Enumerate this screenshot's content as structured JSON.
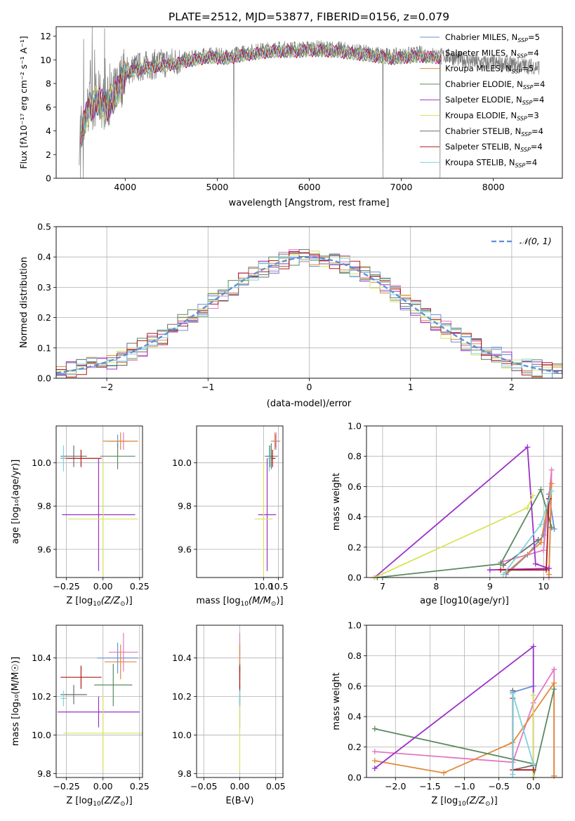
{
  "title": "PLATE=2512, MJD=53877, FIBERID=0156, z=0.079",
  "colors": {
    "Chabrier MILES": "#6b8fd6",
    "Salpeter MILES": "#e377c2",
    "Kroupa MILES": "#e08a3a",
    "Chabrier ELODIE": "#5b8a5f",
    "Salpeter ELODIE": "#9b30c9",
    "Kroupa ELODIE": "#d9e45a",
    "Chabrier STELIB": "#6e6e6e",
    "Salpeter STELIB": "#b01818",
    "Kroupa STELIB": "#7fd3dd"
  },
  "chart_data": [
    {
      "id": "spectrum",
      "type": "line",
      "title": "PLATE=2512, MJD=53877, FIBERID=0156, z=0.079",
      "xlabel": "wavelength [Angstrom, rest frame]",
      "ylabel": "Flux [f$_\\lambda$10$^{-17}$ erg cm$^{-2}$ s$^{-1}$ A$^{-1}$]",
      "xlim": [
        3250,
        8750
      ],
      "ylim": [
        0,
        12.8
      ],
      "xticks": [
        "4000",
        "5000",
        "6000",
        "7000",
        "8000"
      ],
      "yticks": [
        "0",
        "2",
        "4",
        "6",
        "8",
        "10",
        "12"
      ],
      "grid": false,
      "legend_position": "right",
      "legend": [
        {
          "series": "Chabrier MILES",
          "main": "Chabrier MILES, N",
          "sub": "SSP",
          "tail": "=5"
        },
        {
          "series": "Salpeter MILES",
          "main": "Salpeter MILES, N",
          "sub": "SSP",
          "tail": "=4"
        },
        {
          "series": "Kroupa MILES",
          "main": "Kroupa MILES, N",
          "sub": "SSP",
          "tail": "=5"
        },
        {
          "series": "Chabrier ELODIE",
          "main": "Chabrier ELODIE, N",
          "sub": "SSP",
          "tail": "=4"
        },
        {
          "series": "Salpeter ELODIE",
          "main": "Salpeter ELODIE, N",
          "sub": "SSP",
          "tail": "=4"
        },
        {
          "series": "Kroupa ELODIE",
          "main": "Kroupa ELODIE, N",
          "sub": "SSP",
          "tail": "=3"
        },
        {
          "series": "Chabrier STELIB",
          "main": "Chabrier STELIB, N",
          "sub": "SSP",
          "tail": "=4"
        },
        {
          "series": "Salpeter STELIB",
          "main": "Salpeter STELIB, N",
          "sub": "SSP",
          "tail": "=4"
        },
        {
          "series": "Kroupa STELIB",
          "main": "Kroupa STELIB, N",
          "sub": "SSP",
          "tail": "=4"
        }
      ],
      "continuum": [
        [
          3500,
          3.5
        ],
        [
          3600,
          6.0
        ],
        [
          3700,
          6.8
        ],
        [
          3800,
          6.2
        ],
        [
          3900,
          7.3
        ],
        [
          4000,
          9.0
        ],
        [
          4100,
          9.3
        ],
        [
          4200,
          9.5
        ],
        [
          4300,
          9.6
        ],
        [
          4500,
          9.8
        ],
        [
          4700,
          10.1
        ],
        [
          4900,
          10.4
        ],
        [
          5100,
          10.3
        ],
        [
          5300,
          10.6
        ],
        [
          5600,
          10.9
        ],
        [
          5900,
          10.9
        ],
        [
          6000,
          11.0
        ],
        [
          6300,
          10.9
        ],
        [
          6600,
          10.6
        ],
        [
          6900,
          10.3
        ],
        [
          7200,
          10.5
        ],
        [
          7500,
          10.3
        ],
        [
          7800,
          9.8
        ],
        [
          8200,
          9.6
        ],
        [
          8500,
          9.4
        ]
      ],
      "data_range": [
        3500,
        8500
      ],
      "model_range": [
        3520,
        7440
      ],
      "spikes": [
        5180,
        6800,
        7420
      ]
    },
    {
      "id": "residuals",
      "type": "histogram",
      "xlabel": "(data-model)/error",
      "ylabel": "Normed distribution",
      "xlim": [
        -2.5,
        2.5
      ],
      "ylim": [
        0,
        0.5
      ],
      "xticks": [
        "−2",
        "−1",
        "0",
        "1",
        "2"
      ],
      "yticks": [
        "0.0",
        "0.1",
        "0.2",
        "0.3",
        "0.4",
        "0.5"
      ],
      "grid": true,
      "bin_width": 0.1,
      "legend_label": "N(0,1)",
      "reference_curve": {
        "name": "N(0,1)",
        "mean": 0,
        "sigma": 1
      }
    },
    {
      "id": "age-Z",
      "type": "errorbar",
      "xlabel_main": "Z [log",
      "xlabel_sub": "10",
      "xlabel_tail": "(Z/Z",
      "xlabel_end": ")]",
      "ylabel": "age [log10(age/yr)]",
      "xlim": [
        -0.32,
        0.27
      ],
      "ylim": [
        9.47,
        10.17
      ],
      "xticks": [
        "−0.25",
        "0.00",
        "0.25"
      ],
      "yticks": [
        "9.6",
        "9.8",
        "10.0"
      ],
      "points": [
        {
          "series": "Chabrier MILES",
          "x": 0.1,
          "y": 10.1,
          "xerr": 0.07,
          "yerr": 0.03
        },
        {
          "series": "Salpeter MILES",
          "x": 0.14,
          "y": 10.1,
          "xerr": 0.09,
          "yerr": 0.04
        },
        {
          "series": "Kroupa MILES",
          "x": 0.12,
          "y": 10.1,
          "xerr": 0.12,
          "yerr": 0.04
        },
        {
          "series": "Chabrier ELODIE",
          "x": 0.1,
          "y": 10.03,
          "xerr": 0.12,
          "yerr": 0.06
        },
        {
          "series": "Salpeter ELODIE",
          "x": -0.03,
          "y": 9.76,
          "xerr": 0.25,
          "yerr": 0.26
        },
        {
          "series": "Kroupa ELODIE",
          "x": 0.0,
          "y": 9.74,
          "xerr": 0.24,
          "yerr": 0.27
        },
        {
          "series": "Chabrier STELIB",
          "x": -0.2,
          "y": 10.03,
          "xerr": 0.09,
          "yerr": 0.05
        },
        {
          "series": "Salpeter STELIB",
          "x": -0.15,
          "y": 10.02,
          "xerr": 0.14,
          "yerr": 0.04
        },
        {
          "series": "Kroupa STELIB",
          "x": -0.27,
          "y": 10.02,
          "xerr": 0.02,
          "yerr": 0.06
        }
      ]
    },
    {
      "id": "age-mass",
      "type": "errorbar",
      "xlabel_main": "mass [log",
      "xlabel_sub": "10",
      "xlabel_tail": "(M/M",
      "xlabel_end": ")]",
      "xlim": [
        7.75,
        10.65
      ],
      "ylim": [
        9.47,
        10.17
      ],
      "xticks": [
        "10.0",
        "10.5"
      ],
      "yticks": [
        "9.6",
        "9.8",
        "10.0"
      ],
      "points": [
        {
          "series": "Chabrier MILES",
          "x": 10.4,
          "y": 10.1,
          "xerr": 0.12,
          "yerr": 0.03
        },
        {
          "series": "Salpeter MILES",
          "x": 10.42,
          "y": 10.1,
          "xerr": 0.14,
          "yerr": 0.04
        },
        {
          "series": "Kroupa MILES",
          "x": 10.38,
          "y": 10.1,
          "xerr": 0.14,
          "yerr": 0.04
        },
        {
          "series": "Chabrier ELODIE",
          "x": 10.26,
          "y": 10.03,
          "xerr": 0.22,
          "yerr": 0.06
        },
        {
          "series": "Salpeter ELODIE",
          "x": 10.12,
          "y": 9.76,
          "xerr": 0.3,
          "yerr": 0.26
        },
        {
          "series": "Kroupa ELODIE",
          "x": 10.0,
          "y": 9.74,
          "xerr": 0.3,
          "yerr": 0.27
        },
        {
          "series": "Chabrier STELIB",
          "x": 10.21,
          "y": 10.03,
          "xerr": 0.08,
          "yerr": 0.05
        },
        {
          "series": "Salpeter STELIB",
          "x": 10.3,
          "y": 10.02,
          "xerr": 0.1,
          "yerr": 0.04
        },
        {
          "series": "Kroupa STELIB",
          "x": 10.19,
          "y": 10.02,
          "xerr": 0.07,
          "yerr": 0.06
        }
      ]
    },
    {
      "id": "weight-age",
      "type": "line",
      "xlabel": "age [log10(age/yr)]",
      "ylabel": "mass weight",
      "xlim": [
        6.7,
        10.35
      ],
      "ylim": [
        0,
        1.0
      ],
      "xticks": [
        "7",
        "8",
        "9",
        "10"
      ],
      "yticks": [
        "0.0",
        "0.2",
        "0.4",
        "0.6",
        "0.8",
        "1.0"
      ],
      "grid": true,
      "series": [
        {
          "name": "Chabrier MILES",
          "points": [
            [
              9.3,
              0.02
            ],
            [
              9.7,
              0.15
            ],
            [
              10.0,
              0.28
            ],
            [
              10.1,
              0.55
            ],
            [
              10.2,
              0.32
            ]
          ]
        },
        {
          "name": "Salpeter MILES",
          "points": [
            [
              9.2,
              0.1
            ],
            [
              10.0,
              0.18
            ],
            [
              10.15,
              0.71
            ],
            [
              10.1,
              0.0
            ]
          ]
        },
        {
          "name": "Kroupa MILES",
          "points": [
            [
              9.3,
              0.03
            ],
            [
              9.95,
              0.23
            ],
            [
              10.15,
              0.62
            ],
            [
              10.1,
              0.02
            ]
          ]
        },
        {
          "name": "Chabrier ELODIE",
          "points": [
            [
              6.9,
              0.0
            ],
            [
              9.2,
              0.09
            ],
            [
              9.95,
              0.58
            ],
            [
              10.15,
              0.33
            ]
          ]
        },
        {
          "name": "Salpeter ELODIE",
          "points": [
            [
              6.85,
              0.0
            ],
            [
              9.7,
              0.86
            ],
            [
              9.85,
              0.09
            ],
            [
              10.1,
              0.06
            ],
            [
              9.0,
              0.05
            ]
          ]
        },
        {
          "name": "Kroupa ELODIE",
          "points": [
            [
              6.85,
              0.0
            ],
            [
              9.7,
              0.46
            ],
            [
              9.8,
              0.54
            ]
          ]
        },
        {
          "name": "Chabrier STELIB",
          "points": [
            [
              9.25,
              0.08
            ],
            [
              9.9,
              0.25
            ]
          ]
        },
        {
          "name": "Salpeter STELIB",
          "points": [
            [
              9.2,
              0.05
            ],
            [
              10.05,
              0.05
            ],
            [
              10.1,
              0.52
            ]
          ]
        },
        {
          "name": "Kroupa STELIB",
          "points": [
            [
              9.25,
              0.02
            ],
            [
              9.95,
              0.35
            ],
            [
              10.15,
              0.57
            ]
          ]
        }
      ]
    },
    {
      "id": "mass-Z",
      "type": "errorbar",
      "xlabel_main": "Z [log",
      "xlabel_sub": "10",
      "xlabel_tail": "(Z/Z",
      "xlabel_end": ")]",
      "ylabel": "mass [log10(M/M☉)]",
      "xlim": [
        -0.32,
        0.27
      ],
      "ylim": [
        9.78,
        10.57
      ],
      "xticks": [
        "−0.25",
        "0.00",
        "0.25"
      ],
      "yticks": [
        "9.8",
        "10.0",
        "10.2",
        "10.4"
      ],
      "points": [
        {
          "series": "Chabrier MILES",
          "x": 0.1,
          "y": 10.4,
          "xerr": 0.14,
          "yerr": 0.08
        },
        {
          "series": "Salpeter MILES",
          "x": 0.14,
          "y": 10.43,
          "xerr": 0.1,
          "yerr": 0.1
        },
        {
          "series": "Kroupa MILES",
          "x": 0.12,
          "y": 10.38,
          "xerr": 0.11,
          "yerr": 0.09
        },
        {
          "series": "Chabrier ELODIE",
          "x": 0.07,
          "y": 10.26,
          "xerr": 0.13,
          "yerr": 0.11
        },
        {
          "series": "Salpeter ELODIE",
          "x": -0.03,
          "y": 10.12,
          "xerr": 0.28,
          "yerr": 0.08
        },
        {
          "series": "Kroupa ELODIE",
          "x": 0.0,
          "y": 10.01,
          "xerr": 0.27,
          "yerr": 0.2
        },
        {
          "series": "Chabrier STELIB",
          "x": -0.2,
          "y": 10.21,
          "xerr": 0.09,
          "yerr": 0.05
        },
        {
          "series": "Salpeter STELIB",
          "x": -0.15,
          "y": 10.3,
          "xerr": 0.14,
          "yerr": 0.06
        },
        {
          "series": "Kroupa STELIB",
          "x": -0.27,
          "y": 10.19,
          "xerr": 0.02,
          "yerr": 0.04
        }
      ]
    },
    {
      "id": "mass-EBV",
      "type": "errorbar",
      "xlabel": "E(B-V)",
      "xlim": [
        -0.06,
        0.06
      ],
      "ylim": [
        9.78,
        10.57
      ],
      "xticks": [
        "−0.05",
        "0.00",
        "0.05"
      ],
      "yticks": [
        "9.8",
        "10.0",
        "10.2",
        "10.4"
      ],
      "points": [
        {
          "series": "Chabrier MILES",
          "x": 0,
          "y": 10.4,
          "xerr": 0,
          "yerr": 0.08
        },
        {
          "series": "Salpeter MILES",
          "x": 0,
          "y": 10.43,
          "xerr": 0,
          "yerr": 0.1
        },
        {
          "series": "Kroupa MILES",
          "x": 0,
          "y": 10.38,
          "xerr": 0,
          "yerr": 0.09
        },
        {
          "series": "Chabrier ELODIE",
          "x": 0,
          "y": 10.26,
          "xerr": 0,
          "yerr": 0.11
        },
        {
          "series": "Salpeter ELODIE",
          "x": 0,
          "y": 10.12,
          "xerr": 0,
          "yerr": 0.08
        },
        {
          "series": "Kroupa ELODIE",
          "x": 0,
          "y": 10.01,
          "xerr": 0,
          "yerr": 0.2
        },
        {
          "series": "Chabrier STELIB",
          "x": 0,
          "y": 10.21,
          "xerr": 0,
          "yerr": 0.05
        },
        {
          "series": "Salpeter STELIB",
          "x": 0,
          "y": 10.3,
          "xerr": 0,
          "yerr": 0.06
        },
        {
          "series": "Kroupa STELIB",
          "x": 0,
          "y": 10.19,
          "xerr": 0,
          "yerr": 0.04
        }
      ]
    },
    {
      "id": "weight-Z",
      "type": "line",
      "xlabel_main": "Z [log",
      "xlabel_sub": "10",
      "xlabel_tail": "(Z/Z",
      "xlabel_end": ")]",
      "ylabel": "mass weight",
      "xlim": [
        -2.42,
        0.42
      ],
      "ylim": [
        0,
        1.0
      ],
      "xticks": [
        "−2.0",
        "−1.5",
        "−1.0",
        "−0.5",
        "0.0"
      ],
      "yticks": [
        "0.0",
        "0.2",
        "0.4",
        "0.6",
        "0.8",
        "1.0"
      ],
      "grid": true,
      "series": [
        {
          "name": "Chabrier MILES",
          "points": [
            [
              -0.3,
              0.02
            ],
            [
              -0.3,
              0.56
            ],
            [
              0.0,
              0.6
            ]
          ]
        },
        {
          "name": "Salpeter MILES",
          "points": [
            [
              -2.3,
              0.17
            ],
            [
              -0.3,
              0.1
            ],
            [
              0.0,
              0.49
            ],
            [
              0.3,
              0.71
            ],
            [
              0.3,
              0.01
            ]
          ]
        },
        {
          "name": "Kroupa MILES",
          "points": [
            [
              -2.3,
              0.11
            ],
            [
              -1.3,
              0.03
            ],
            [
              -0.3,
              0.23
            ],
            [
              0.3,
              0.62
            ],
            [
              0.3,
              0.01
            ]
          ]
        },
        {
          "name": "Chabrier ELODIE",
          "points": [
            [
              -2.3,
              0.32
            ],
            [
              0.0,
              0.09
            ],
            [
              0.0,
              0.0
            ],
            [
              0.3,
              0.58
            ]
          ]
        },
        {
          "name": "Salpeter ELODIE",
          "points": [
            [
              -2.3,
              0.06
            ],
            [
              0.0,
              0.86
            ],
            [
              0.0,
              0.05
            ]
          ]
        },
        {
          "name": "Kroupa ELODIE",
          "points": [
            [
              0.0,
              0.54
            ],
            [
              0.0,
              0.0
            ]
          ]
        },
        {
          "name": "Chabrier STELIB",
          "points": [
            [
              -0.3,
              0.57
            ],
            [
              -0.3,
              0.05
            ],
            [
              0.0,
              0.08
            ]
          ]
        },
        {
          "name": "Salpeter STELIB",
          "points": [
            [
              -0.3,
              0.52
            ],
            [
              -0.3,
              0.05
            ],
            [
              0.0,
              0.05
            ]
          ]
        },
        {
          "name": "Kroupa STELIB",
          "points": [
            [
              -0.3,
              0.02
            ],
            [
              -0.3,
              0.55
            ],
            [
              0.0,
              0.09
            ]
          ]
        }
      ]
    }
  ]
}
